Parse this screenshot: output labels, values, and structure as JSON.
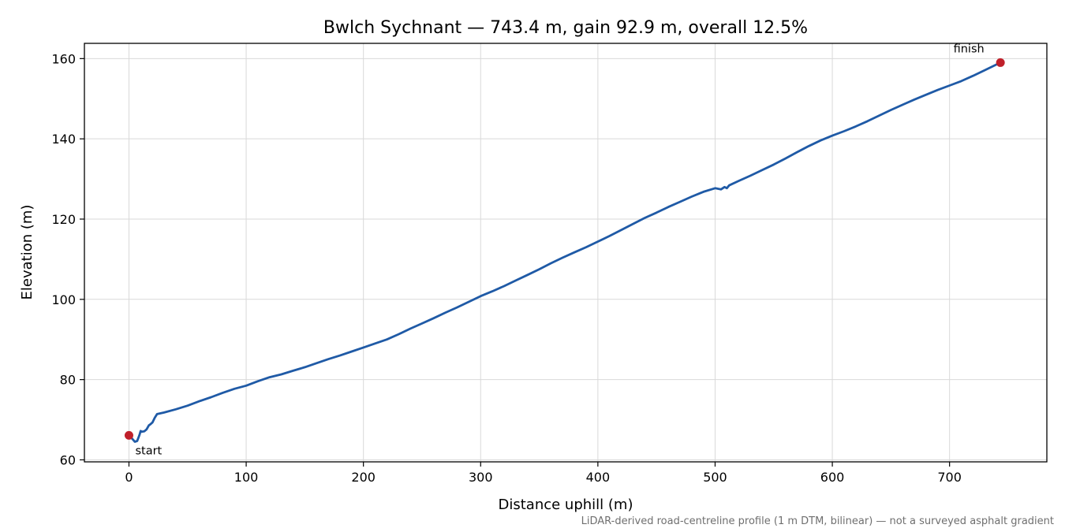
{
  "chart_data": {
    "type": "line",
    "title": "Bwlch Sychnant — 743.4 m, gain 92.9 m, overall 12.5%",
    "xlabel": "Distance uphill (m)",
    "ylabel": "Elevation (m)",
    "footnote": "LiDAR-derived road-centreline profile (1 m DTM, bilinear) — not a surveyed asphalt gradient",
    "xlim": [
      -38,
      783
    ],
    "ylim": [
      59.5,
      163.8
    ],
    "xticks": [
      0,
      100,
      200,
      300,
      400,
      500,
      600,
      700
    ],
    "yticks": [
      60,
      80,
      100,
      120,
      140,
      160
    ],
    "grid": true,
    "line_color": "#1f5aa6",
    "marker_color": "#c0202a",
    "series": [
      {
        "x": [
          0,
          3,
          5,
          7,
          9,
          10,
          11,
          13,
          15,
          17,
          18,
          20,
          22,
          24,
          30,
          40,
          50,
          60,
          70,
          80,
          90,
          100,
          110,
          120,
          130,
          140,
          150,
          160,
          170,
          180,
          190,
          200,
          210,
          220,
          230,
          240,
          250,
          260,
          270,
          280,
          290,
          300,
          310,
          320,
          330,
          340,
          350,
          360,
          370,
          380,
          390,
          400,
          410,
          420,
          430,
          440,
          450,
          460,
          470,
          480,
          490,
          500,
          505,
          508,
          510,
          512,
          520,
          530,
          540,
          550,
          560,
          570,
          580,
          590,
          600,
          610,
          620,
          630,
          640,
          650,
          660,
          670,
          680,
          690,
          700,
          710,
          720,
          730,
          743.4
        ],
        "y": [
          66.1,
          65.2,
          64.5,
          64.7,
          66.2,
          67.2,
          67.0,
          67.1,
          67.6,
          68.6,
          68.8,
          69.3,
          70.5,
          71.4,
          71.8,
          72.6,
          73.5,
          74.6,
          75.6,
          76.7,
          77.7,
          78.5,
          79.6,
          80.6,
          81.3,
          82.2,
          83.1,
          84.1,
          85.1,
          86.0,
          87.0,
          88.0,
          89.0,
          90.0,
          91.3,
          92.7,
          94.0,
          95.3,
          96.7,
          98.0,
          99.4,
          100.8,
          102.0,
          103.3,
          104.7,
          106.1,
          107.5,
          109.0,
          110.4,
          111.7,
          113.0,
          114.4,
          115.8,
          117.3,
          118.8,
          120.3,
          121.6,
          123.0,
          124.3,
          125.6,
          126.8,
          127.7,
          127.4,
          128.0,
          127.7,
          128.4,
          129.5,
          130.8,
          132.2,
          133.6,
          135.1,
          136.7,
          138.2,
          139.6,
          140.8,
          141.9,
          143.1,
          144.4,
          145.8,
          147.2,
          148.5,
          149.8,
          151.0,
          152.2,
          153.3,
          154.4,
          155.7,
          157.1,
          159.0
        ]
      }
    ],
    "annotations": [
      {
        "text": "start",
        "x": 0,
        "y": 66.1
      },
      {
        "text": "finish",
        "x": 743.4,
        "y": 159.0
      }
    ]
  }
}
